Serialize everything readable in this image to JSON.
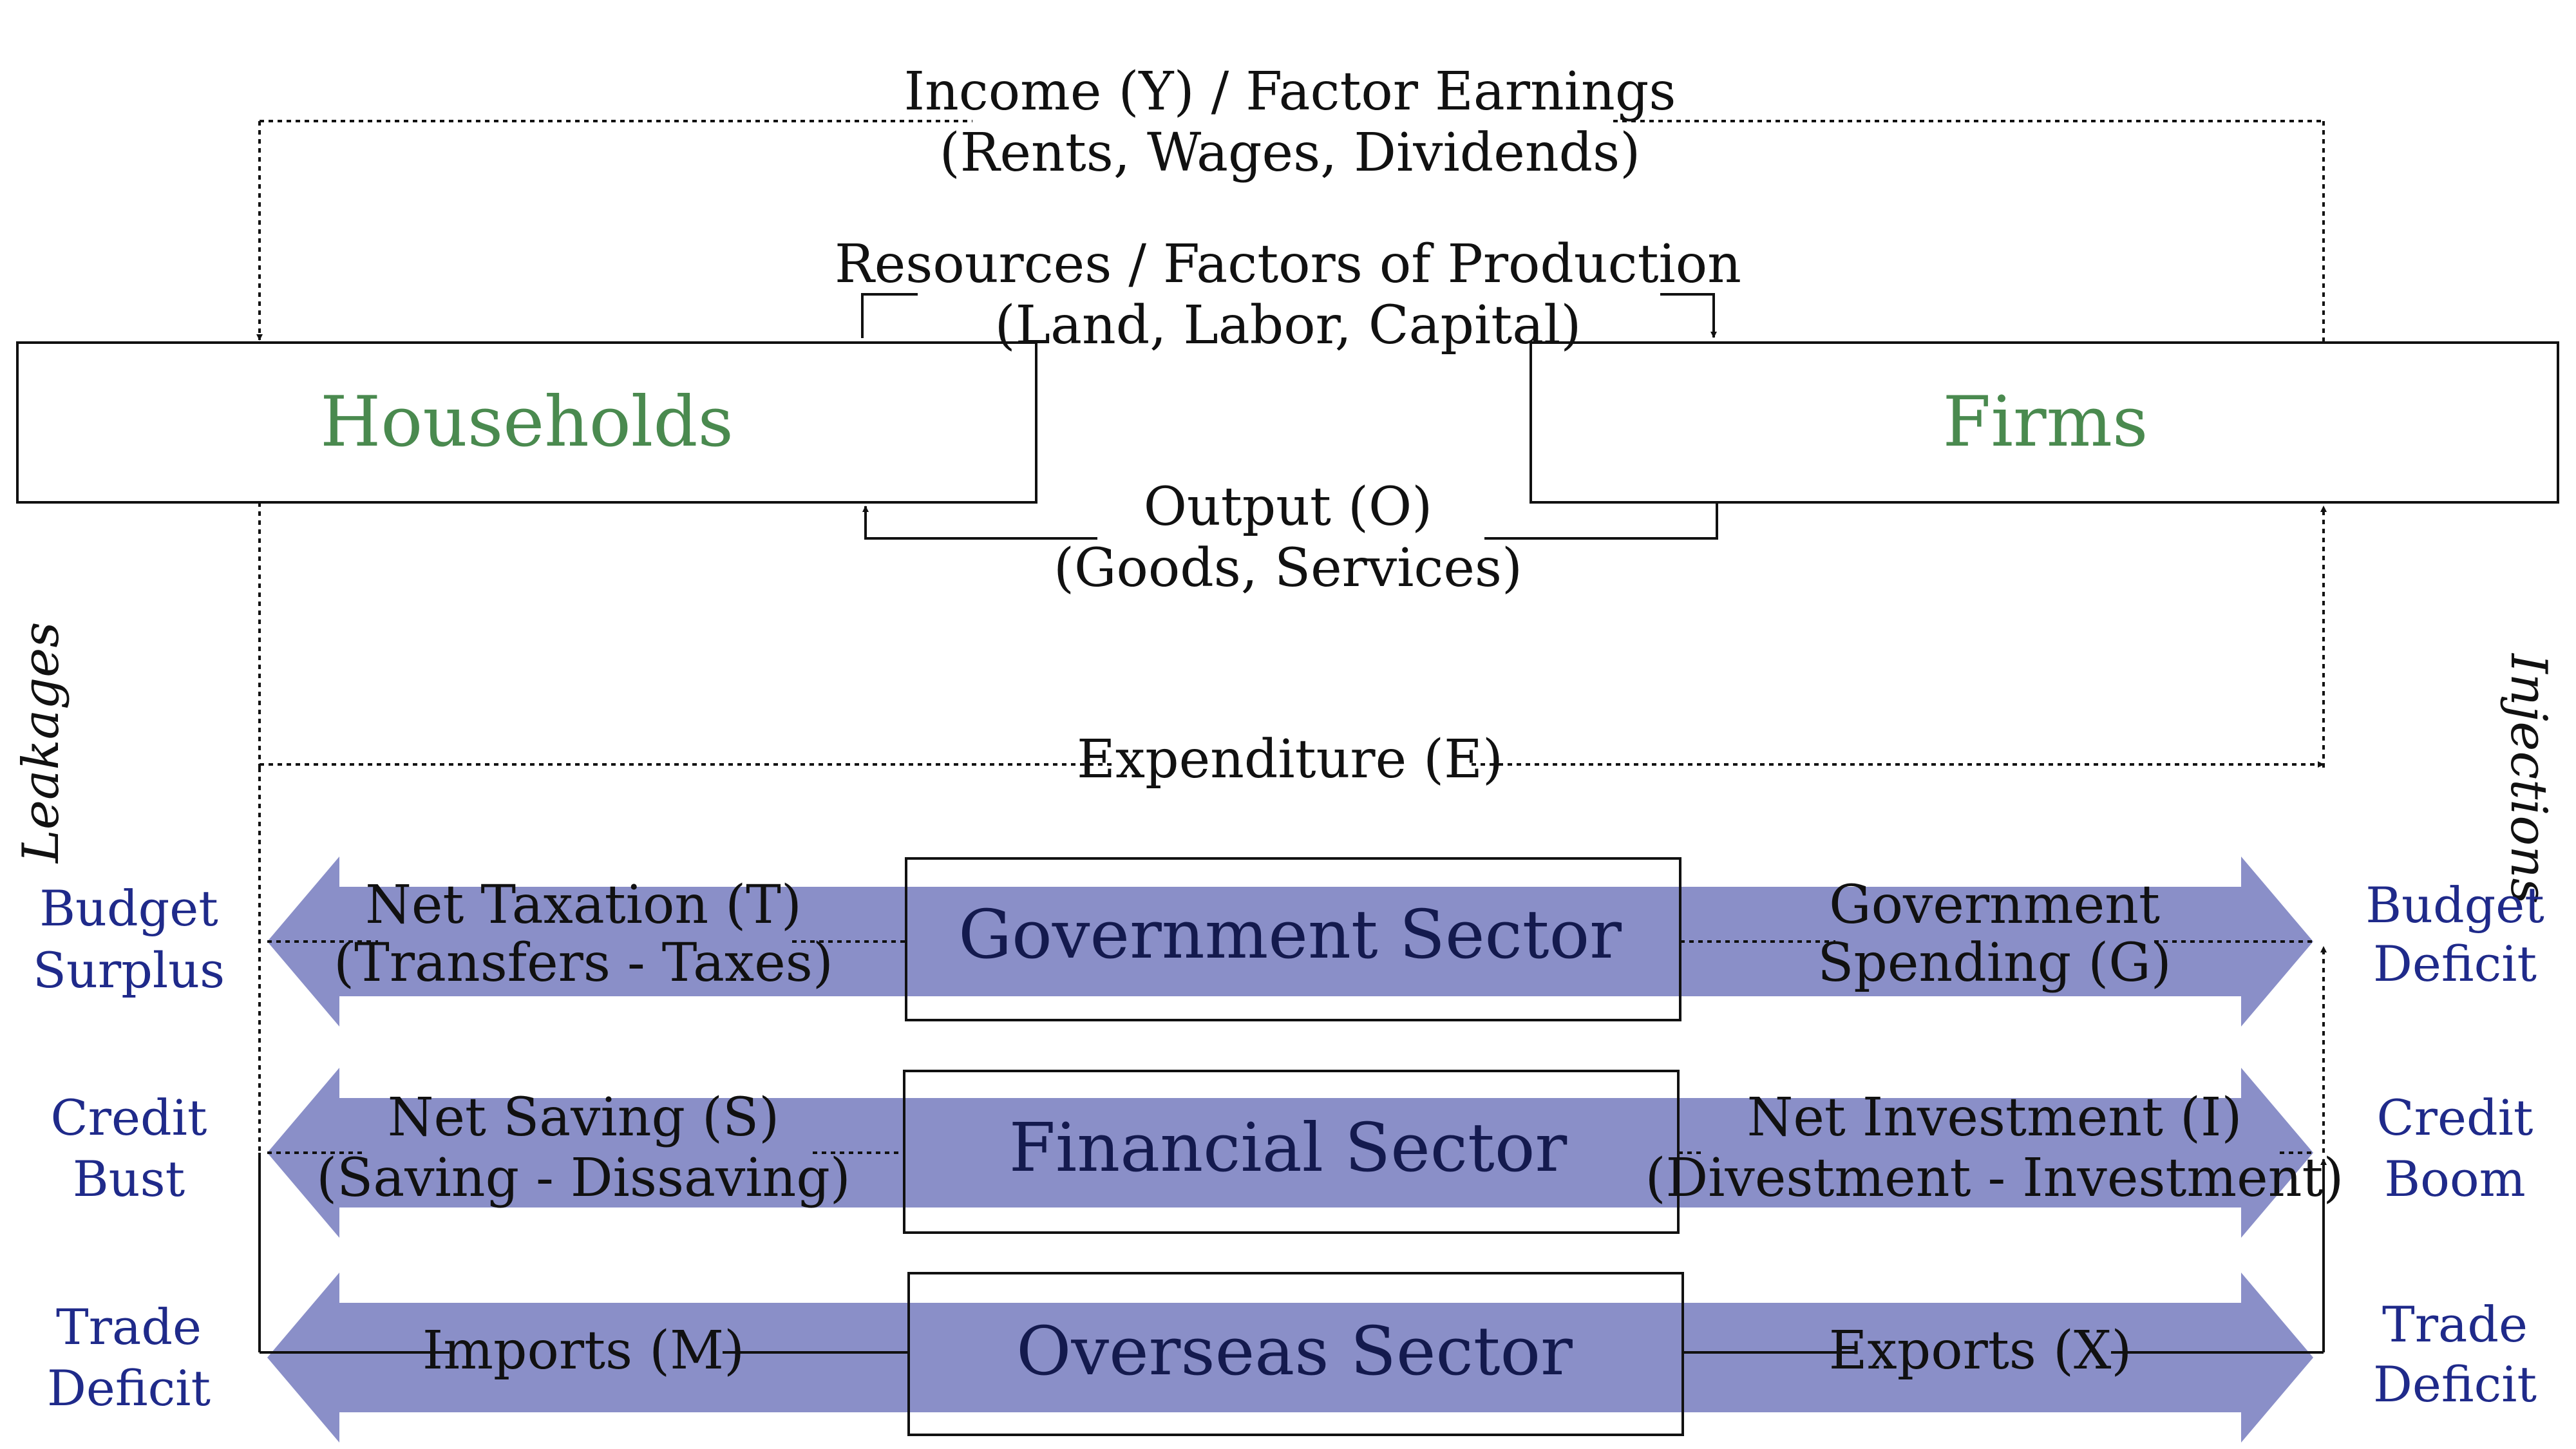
{
  "colors": {
    "band": "#8a8fc8",
    "green_title": "#4a8a4f",
    "side_label": "#1f2a8a",
    "sector_title": "#141a4e"
  },
  "boxes": {
    "households": "Households",
    "firms": "Firms"
  },
  "top_flows": {
    "income": [
      "Income (Y) / Factor Earnings",
      "(Rents, Wages, Dividends)"
    ],
    "resources": [
      "Resources / Factors of Production",
      "(Land, Labor, Capital)"
    ],
    "output": [
      "Output (O)",
      "(Goods, Services)"
    ],
    "expenditure": "Expenditure (E)"
  },
  "axis_labels": {
    "left": "Leakages",
    "right": "Injections"
  },
  "sectors": [
    {
      "title": "Government Sector",
      "left_flow": [
        "Net Taxation (T)",
        "(Transfers - Taxes)"
      ],
      "right_flow": [
        "Government",
        "Spending (G)"
      ],
      "left_outcome": [
        "Budget",
        "Surplus"
      ],
      "right_outcome": [
        "Budget",
        "Deficit"
      ]
    },
    {
      "title": "Financial Sector",
      "left_flow": [
        "Net Saving (S)",
        "(Saving - Dissaving)"
      ],
      "right_flow": [
        "Net Investment (I)",
        "(Divestment - Investment)"
      ],
      "left_outcome": [
        "Credit",
        "Bust"
      ],
      "right_outcome": [
        "Credit",
        "Boom"
      ]
    },
    {
      "title": "Overseas Sector",
      "left_flow": [
        "Imports (M)"
      ],
      "right_flow": [
        "Exports (X)"
      ],
      "left_outcome": [
        "Trade",
        "Deficit"
      ],
      "right_outcome": [
        "Trade",
        "Deficit"
      ]
    }
  ]
}
